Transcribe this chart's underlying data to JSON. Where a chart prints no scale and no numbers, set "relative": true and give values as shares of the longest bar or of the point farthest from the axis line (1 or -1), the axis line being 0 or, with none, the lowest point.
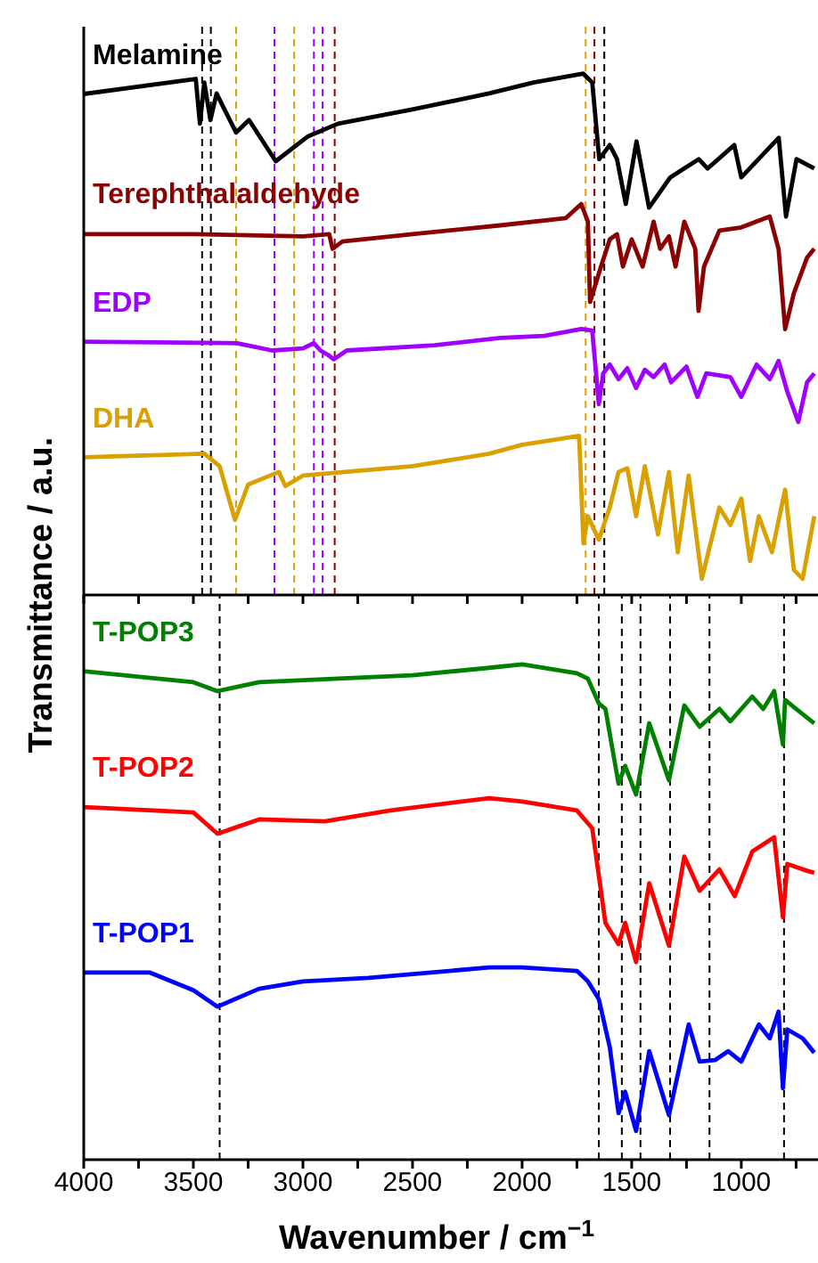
{
  "chart_data": [
    {
      "type": "line",
      "relative": true,
      "ylabel": "Transmittance / a.u.",
      "xlim": [
        4000,
        650
      ],
      "tick_labels": false,
      "xticks": [
        4000,
        {
          "value": 3750,
          "label": null
        },
        3500,
        {
          "value": 3250,
          "label": null
        },
        3000,
        {
          "value": 2750,
          "label": null
        },
        2500,
        {
          "value": 2250,
          "label": null
        },
        2000,
        {
          "value": 1750,
          "label": null
        },
        1500,
        {
          "value": 1250,
          "label": null
        },
        1000,
        {
          "value": 750,
          "label": null
        }
      ],
      "series": [
        {
          "name": "Melamine",
          "color": "#000000",
          "x": [
            4000,
            3489,
            3470,
            3450,
            3422,
            3394,
            3354,
            3305,
            3246,
            3124,
            2976,
            2840,
            2491,
            2151,
            1948,
            1721,
            1680,
            1648,
            1600,
            1567,
            1527,
            1478,
            1421,
            1324,
            1194,
            1154,
            1032,
            1000,
            829,
            796,
            748,
            667
          ],
          "values": [
            0.961,
            0.99,
            0.904,
            0.983,
            0.911,
            0.962,
            0.928,
            0.887,
            0.911,
            0.832,
            0.88,
            0.904,
            0.932,
            0.962,
            0.983,
            1.0,
            0.983,
            0.836,
            0.863,
            0.836,
            0.75,
            0.87,
            0.743,
            0.801,
            0.836,
            0.818,
            0.863,
            0.801,
            0.877,
            0.726,
            0.836,
            0.818
          ]
        },
        {
          "name": "Terephthalaldehyde",
          "color": "#8b0000",
          "x": [
            4000,
            3500,
            3000,
            2880,
            2865,
            2820,
            2500,
            2100,
            1800,
            1730,
            1700,
            1690,
            1640,
            1600,
            1567,
            1540,
            1500,
            1450,
            1400,
            1370,
            1330,
            1300,
            1260,
            1210,
            1195,
            1170,
            1100,
            1000,
            870,
            830,
            800,
            760,
            700,
            667
          ],
          "values": [
            0.692,
            0.692,
            0.688,
            0.692,
            0.664,
            0.678,
            0.692,
            0.709,
            0.723,
            0.75,
            0.716,
            0.562,
            0.63,
            0.682,
            0.692,
            0.63,
            0.682,
            0.63,
            0.716,
            0.664,
            0.688,
            0.63,
            0.716,
            0.664,
            0.545,
            0.63,
            0.699,
            0.705,
            0.726,
            0.664,
            0.51,
            0.579,
            0.647,
            0.664
          ]
        },
        {
          "name": "EDP",
          "color": "#a000ff",
          "x": [
            4000,
            3300,
            3140,
            3000,
            2950,
            2920,
            2880,
            2860,
            2800,
            2400,
            2100,
            1900,
            1730,
            1680,
            1650,
            1630,
            1600,
            1560,
            1520,
            1480,
            1440,
            1400,
            1350,
            1320,
            1250,
            1200,
            1160,
            1050,
            1000,
            930,
            870,
            830,
            790,
            740,
            700,
            667
          ],
          "values": [
            0.486,
            0.483,
            0.469,
            0.473,
            0.483,
            0.469,
            0.459,
            0.452,
            0.469,
            0.479,
            0.493,
            0.497,
            0.51,
            0.507,
            0.366,
            0.425,
            0.442,
            0.414,
            0.435,
            0.397,
            0.432,
            0.418,
            0.442,
            0.408,
            0.438,
            0.38,
            0.425,
            0.418,
            0.38,
            0.442,
            0.414,
            0.449,
            0.39,
            0.332,
            0.408,
            0.425
          ]
        },
        {
          "name": "DHA",
          "color": "#daa000",
          "x": [
            4000,
            3450,
            3380,
            3310,
            3250,
            3110,
            3080,
            3000,
            2500,
            2150,
            2000,
            1740,
            1720,
            1700,
            1650,
            1600,
            1560,
            1520,
            1480,
            1440,
            1380,
            1330,
            1290,
            1240,
            1180,
            1100,
            1050,
            1000,
            960,
            920,
            860,
            800,
            760,
            720,
            667
          ],
          "values": [
            0.264,
            0.271,
            0.247,
            0.144,
            0.212,
            0.236,
            0.209,
            0.229,
            0.247,
            0.271,
            0.288,
            0.305,
            0.099,
            0.151,
            0.106,
            0.168,
            0.236,
            0.243,
            0.151,
            0.247,
            0.116,
            0.236,
            0.082,
            0.229,
            0.031,
            0.168,
            0.134,
            0.185,
            0.065,
            0.151,
            0.082,
            0.202,
            0.048,
            0.031,
            0.151
          ]
        }
      ],
      "ref_lines": [
        {
          "axis": "x",
          "value": 3460,
          "label": null,
          "color": "#000000",
          "line_style": "dashed"
        },
        {
          "axis": "x",
          "value": 3420,
          "label": null,
          "color": "#000000",
          "line_style": "dashed"
        },
        {
          "axis": "x",
          "value": 3305,
          "label": null,
          "color": "#daa000",
          "line_style": "dashed"
        },
        {
          "axis": "x",
          "value": 3130,
          "label": null,
          "color": "#a000ff",
          "line_style": "dashed"
        },
        {
          "axis": "x",
          "value": 3040,
          "label": null,
          "color": "#daa000",
          "line_style": "dashed"
        },
        {
          "axis": "x",
          "value": 2950,
          "label": null,
          "color": "#a000ff",
          "line_style": "dashed"
        },
        {
          "axis": "x",
          "value": 2910,
          "label": null,
          "color": "#a000ff",
          "line_style": "dashed"
        },
        {
          "axis": "x",
          "value": 2855,
          "label": null,
          "color": "#8b0000",
          "line_style": "dashed"
        },
        {
          "axis": "x",
          "value": 1710,
          "label": null,
          "color": "#daa000",
          "line_style": "dashed"
        },
        {
          "axis": "x",
          "value": 1670,
          "label": null,
          "color": "#8b0000",
          "line_style": "dashed"
        },
        {
          "axis": "x",
          "value": 1625,
          "label": null,
          "color": "#000000",
          "line_style": "dashed"
        }
      ]
    },
    {
      "type": "line",
      "relative": true,
      "xlabel": "Wavenumber / cm$^{−1}$",
      "xlim": [
        4000,
        650
      ],
      "tick_labels": "x",
      "xticks": [
        4000,
        {
          "value": 3750,
          "label": null
        },
        3500,
        {
          "value": 3250,
          "label": null
        },
        3000,
        {
          "value": 2750,
          "label": null
        },
        2500,
        {
          "value": 2250,
          "label": null
        },
        2000,
        {
          "value": 1750,
          "label": null
        },
        1500,
        {
          "value": 1250,
          "label": null
        },
        1000,
        {
          "value": 750,
          "label": null
        }
      ],
      "series": [
        {
          "name": "T-POP3",
          "color": "#008000",
          "x": [
            4000,
            3500,
            3390,
            3200,
            2500,
            2150,
            2000,
            1750,
            1700,
            1650,
            1620,
            1560,
            1530,
            1480,
            1420,
            1330,
            1260,
            1190,
            1100,
            1050,
            950,
            900,
            850,
            810,
            800,
            750,
            667
          ],
          "values": [
            0.986,
            0.964,
            0.946,
            0.964,
            0.978,
            0.993,
            1.0,
            0.982,
            0.971,
            0.921,
            0.91,
            0.759,
            0.795,
            0.737,
            0.881,
            0.766,
            0.917,
            0.874,
            0.91,
            0.885,
            0.935,
            0.91,
            0.946,
            0.838,
            0.928,
            0.91,
            0.881
          ]
        },
        {
          "name": "T-POP2",
          "color": "#ff0000",
          "x": [
            4000,
            3500,
            3390,
            3200,
            2900,
            2600,
            2150,
            2000,
            1750,
            1680,
            1620,
            1560,
            1530,
            1480,
            1420,
            1330,
            1260,
            1190,
            1100,
            1030,
            950,
            850,
            810,
            790,
            720,
            667
          ],
          "values": [
            0.712,
            0.701,
            0.658,
            0.687,
            0.683,
            0.705,
            0.73,
            0.723,
            0.705,
            0.669,
            0.478,
            0.435,
            0.478,
            0.399,
            0.558,
            0.432,
            0.612,
            0.543,
            0.586,
            0.532,
            0.622,
            0.651,
            0.489,
            0.597,
            0.586,
            0.579
          ]
        },
        {
          "name": "T-POP1",
          "color": "#0000ff",
          "x": [
            4000,
            3700,
            3500,
            3390,
            3200,
            3000,
            2700,
            2150,
            2000,
            1750,
            1700,
            1650,
            1600,
            1560,
            1530,
            1480,
            1420,
            1330,
            1240,
            1190,
            1120,
            1060,
            1000,
            920,
            870,
            830,
            810,
            790,
            720,
            667
          ],
          "values": [
            0.378,
            0.378,
            0.342,
            0.309,
            0.345,
            0.36,
            0.367,
            0.388,
            0.388,
            0.381,
            0.36,
            0.324,
            0.227,
            0.094,
            0.137,
            0.058,
            0.219,
            0.09,
            0.273,
            0.198,
            0.201,
            0.219,
            0.198,
            0.273,
            0.245,
            0.299,
            0.144,
            0.263,
            0.245,
            0.216
          ]
        }
      ],
      "ref_lines": [
        {
          "axis": "x",
          "value": 3380,
          "label": null,
          "color": "#000000",
          "line_style": "dashed"
        },
        {
          "axis": "x",
          "value": 1650,
          "label": null,
          "color": "#000000",
          "line_style": "dashed"
        },
        {
          "axis": "x",
          "value": 1545,
          "label": null,
          "color": "#000000",
          "line_style": "dashed"
        },
        {
          "axis": "x",
          "value": 1460,
          "label": null,
          "color": "#000000",
          "line_style": "dashed"
        },
        {
          "axis": "x",
          "value": 1325,
          "label": null,
          "color": "#000000",
          "line_style": "dashed"
        },
        {
          "axis": "x",
          "value": 1145,
          "label": null,
          "color": "#000000",
          "line_style": "dashed"
        },
        {
          "axis": "x",
          "value": 805,
          "label": null,
          "color": "#000000",
          "line_style": "dashed"
        }
      ]
    }
  ]
}
